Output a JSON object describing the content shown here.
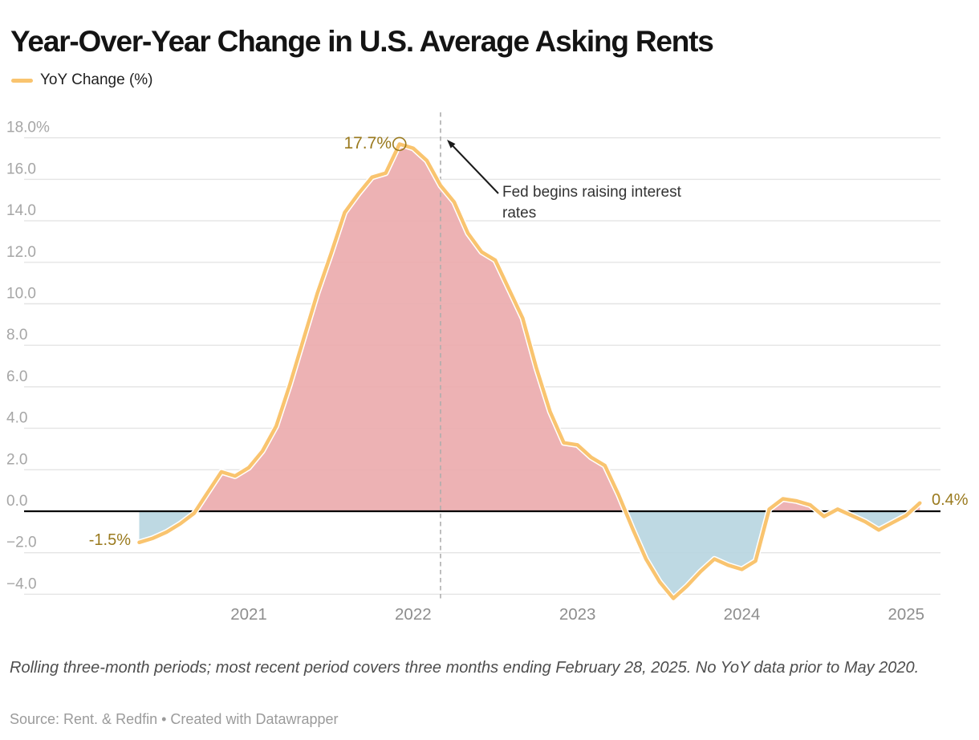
{
  "header": {
    "title": "Year-Over-Year Change in U.S. Average Asking Rents",
    "legend_label": "YoY Change (%)"
  },
  "colors": {
    "line": "#F9C46F",
    "line_casing": "#FFFFFF",
    "fill_positive": "#ECABAE",
    "fill_negative": "#B8D6E1",
    "annotation_gold": "#9A7A1E",
    "grid": "#E4E4E4",
    "zero_line": "#000000",
    "dashed_line": "#ADADAD",
    "axis_text": "#A6A6A6",
    "x_axis_text": "#8E8E8E",
    "note_text": "#333333"
  },
  "chart_data": {
    "type": "area",
    "title": "Year-Over-Year Change in U.S. Average Asking Rents",
    "ylabel": "YoY Change (%)",
    "xlabel": "",
    "ylim": [
      -5.5,
      18.0
    ],
    "grid": true,
    "legend_position": "top-left",
    "x": [
      "May 2020",
      "Jun 2020",
      "Jul 2020",
      "Aug 2020",
      "Sep 2020",
      "Oct 2020",
      "Nov 2020",
      "Dec 2020",
      "Jan 2021",
      "Feb 2021",
      "Mar 2021",
      "Apr 2021",
      "May 2021",
      "Jun 2021",
      "Jul 2021",
      "Aug 2021",
      "Sep 2021",
      "Oct 2021",
      "Nov 2021",
      "Dec 2021",
      "Jan 2022",
      "Feb 2022",
      "Mar 2022",
      "Apr 2022",
      "May 2022",
      "Jun 2022",
      "Jul 2022",
      "Aug 2022",
      "Sep 2022",
      "Oct 2022",
      "Nov 2022",
      "Dec 2022",
      "Jan 2023",
      "Feb 2023",
      "Mar 2023",
      "Apr 2023",
      "May 2023",
      "Jun 2023",
      "Jul 2023",
      "Aug 2023",
      "Sep 2023",
      "Oct 2023",
      "Nov 2023",
      "Dec 2023",
      "Jan 2024",
      "Feb 2024",
      "Mar 2024",
      "Apr 2024",
      "May 2024",
      "Jun 2024",
      "Jul 2024",
      "Aug 2024",
      "Sep 2024",
      "Oct 2024",
      "Nov 2024",
      "Dec 2024",
      "Jan 2025",
      "Feb 2025"
    ],
    "series": [
      {
        "name": "YoY Change (%)",
        "values": [
          -1.5,
          -1.3,
          -1.0,
          -0.6,
          -0.1,
          0.9,
          1.9,
          1.7,
          2.1,
          2.9,
          4.1,
          6.1,
          8.3,
          10.5,
          12.4,
          14.4,
          15.3,
          16.1,
          16.3,
          17.7,
          17.5,
          16.9,
          15.7,
          14.9,
          13.4,
          12.5,
          12.1,
          10.7,
          9.3,
          6.9,
          4.8,
          3.3,
          3.2,
          2.6,
          2.2,
          0.8,
          -0.8,
          -2.3,
          -3.4,
          -4.2,
          -3.6,
          -2.9,
          -2.3,
          -2.6,
          -2.8,
          -2.4,
          0.1,
          0.6,
          0.5,
          0.3,
          -0.25,
          0.1,
          -0.2,
          -0.5,
          -0.9,
          -0.55,
          -0.2,
          0.4
        ]
      }
    ],
    "y_ticks": [
      {
        "value": 18,
        "label": "18.0%"
      },
      {
        "value": 16,
        "label": "16.0"
      },
      {
        "value": 14,
        "label": "14.0"
      },
      {
        "value": 12,
        "label": "12.0"
      },
      {
        "value": 10,
        "label": "10.0"
      },
      {
        "value": 8,
        "label": "8.0"
      },
      {
        "value": 6,
        "label": "6.0"
      },
      {
        "value": 4,
        "label": "4.0"
      },
      {
        "value": 2,
        "label": "2.0"
      },
      {
        "value": 0,
        "label": "0.0"
      },
      {
        "value": -2,
        "label": "−2.0"
      },
      {
        "value": -4,
        "label": "−4.0"
      }
    ],
    "x_ticks": [
      {
        "month_index": 8,
        "label": "2021"
      },
      {
        "month_index": 20,
        "label": "2022"
      },
      {
        "month_index": 32,
        "label": "2023"
      },
      {
        "month_index": 44,
        "label": "2024"
      },
      {
        "month_index": 56,
        "label": "2025"
      }
    ],
    "peak_point": {
      "month_index": 19,
      "value": 17.7
    },
    "dashed_line_month_index": 22
  },
  "annotations": {
    "peak_label": "17.7%",
    "start_label": "-1.5%",
    "end_label": "0.4%",
    "fed_note": "Fed begins raising interest rates"
  },
  "footer": {
    "notes": "Rolling three-month periods; most recent period covers three months ending February 28, 2025. No YoY data prior to May 2020.",
    "source": "Source: Rent. & Redfin • Created with Datawrapper"
  }
}
